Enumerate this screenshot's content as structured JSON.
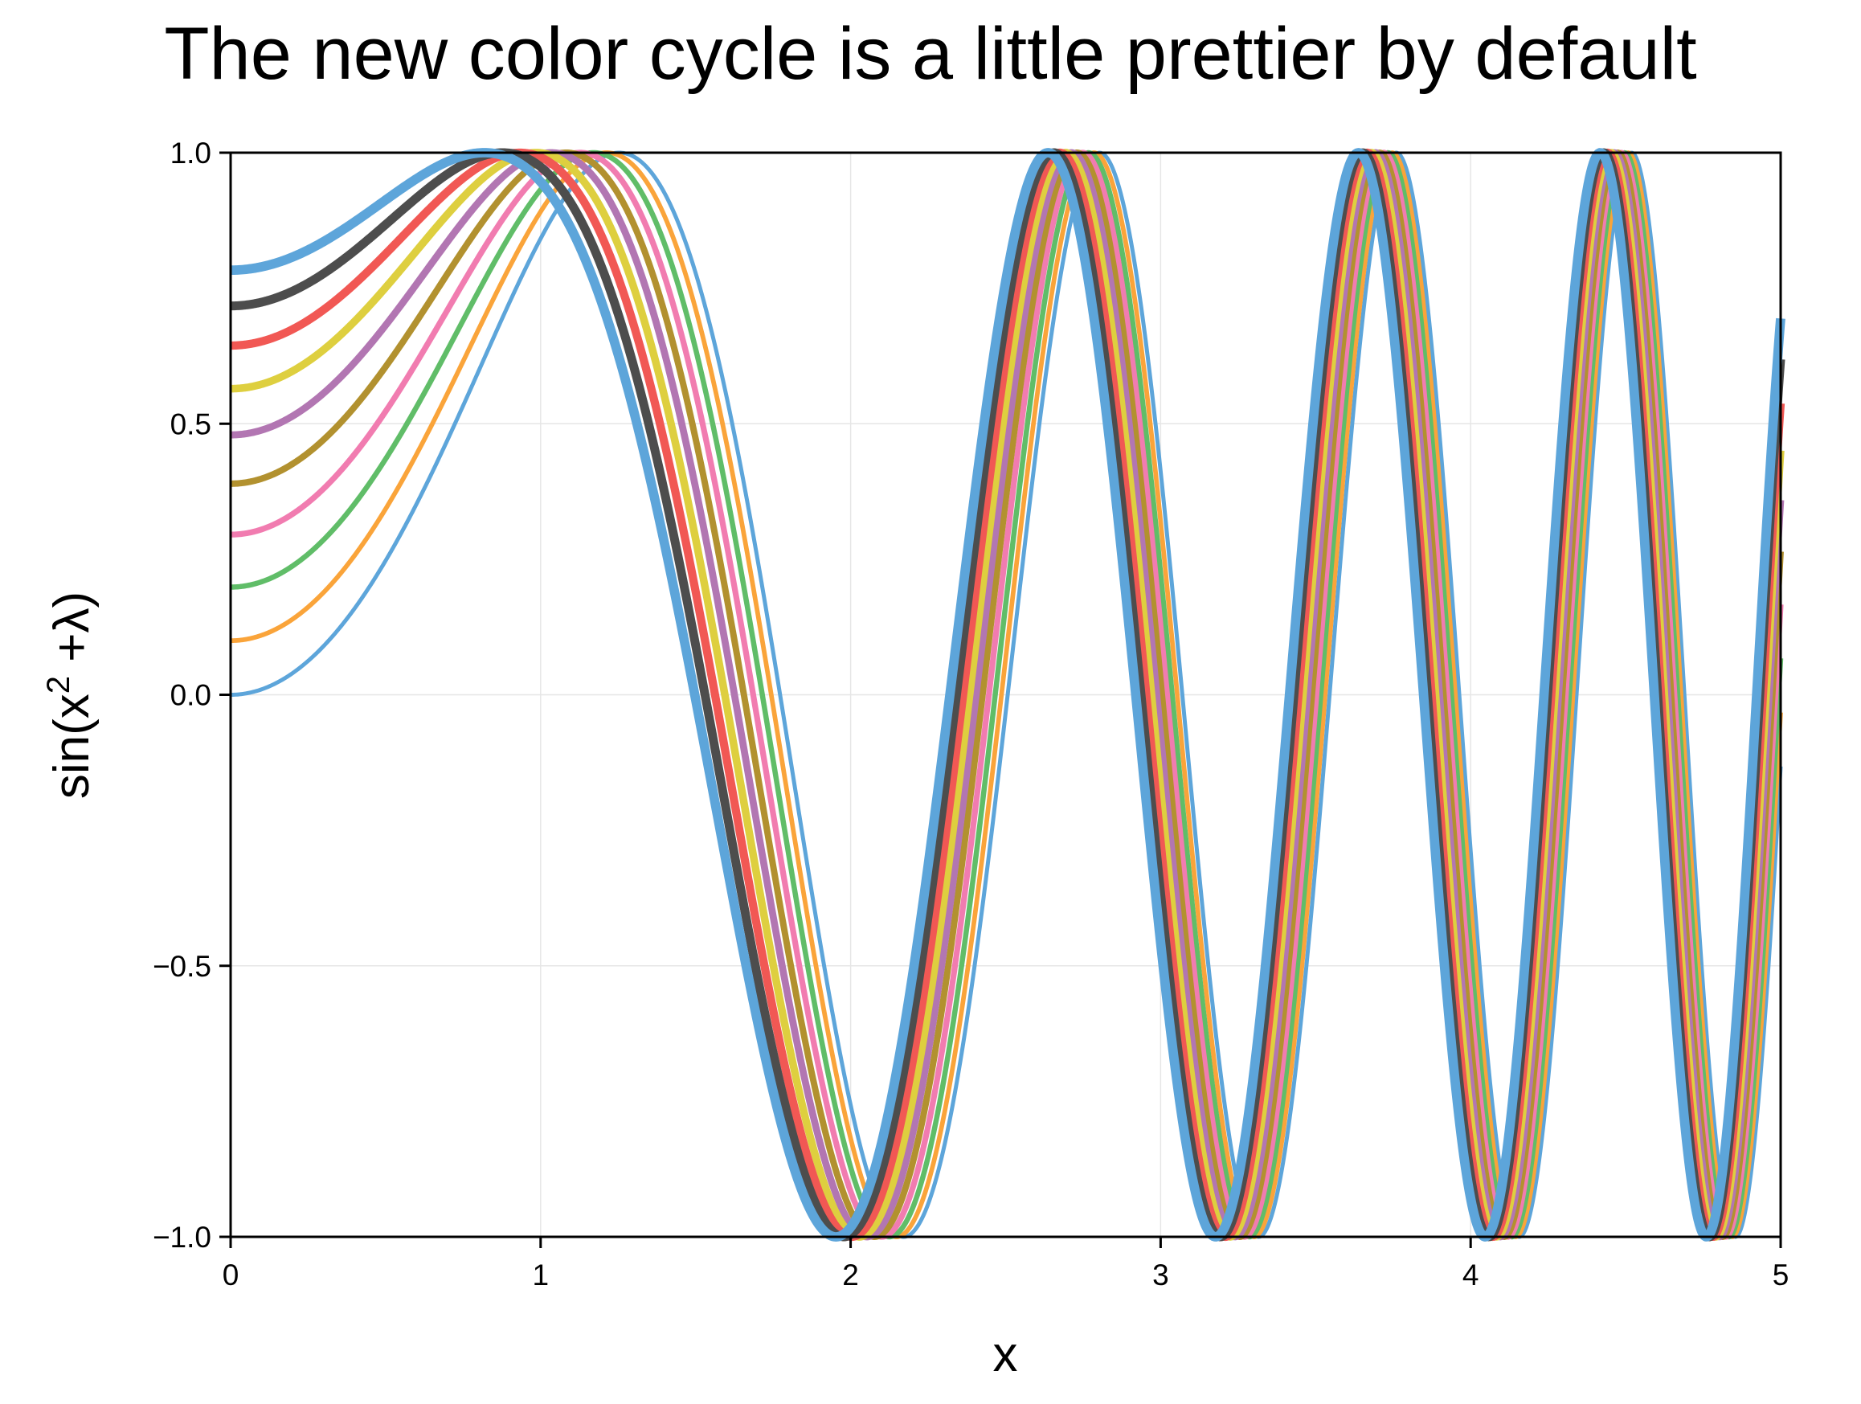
{
  "chart_data": {
    "type": "line",
    "title": "The new color cycle is a little prettier by default",
    "xlabel": "x",
    "ylabel": {
      "base": "sin(x",
      "sup": "2",
      "rest": " +λ)"
    },
    "xlim": [
      0,
      5
    ],
    "ylim": [
      -1.0,
      1.0
    ],
    "x_ticks": [
      "0",
      "1",
      "2",
      "3",
      "4",
      "5"
    ],
    "y_ticks": [
      "1.0",
      "0.5",
      "0.0",
      "−0.5",
      "−1.0"
    ],
    "x_tick_values": [
      0,
      1,
      2,
      3,
      4,
      5
    ],
    "y_tick_values": [
      1.0,
      0.5,
      0.0,
      -0.5,
      -1.0
    ],
    "grid": true,
    "function": "sin(x^2 + lambda)",
    "x_range": [
      0,
      5
    ],
    "series": [
      {
        "lambda": 0.0,
        "color": "#5da5da"
      },
      {
        "lambda": 0.1,
        "color": "#faa43a"
      },
      {
        "lambda": 0.2,
        "color": "#60bd68"
      },
      {
        "lambda": 0.3,
        "color": "#f17cb0"
      },
      {
        "lambda": 0.4,
        "color": "#b2912f"
      },
      {
        "lambda": 0.5,
        "color": "#b276b2"
      },
      {
        "lambda": 0.6,
        "color": "#decf3f"
      },
      {
        "lambda": 0.7,
        "color": "#f15854"
      },
      {
        "lambda": 0.8,
        "color": "#4d4d4d"
      },
      {
        "lambda": 0.9,
        "color": "#5da5da"
      }
    ]
  }
}
